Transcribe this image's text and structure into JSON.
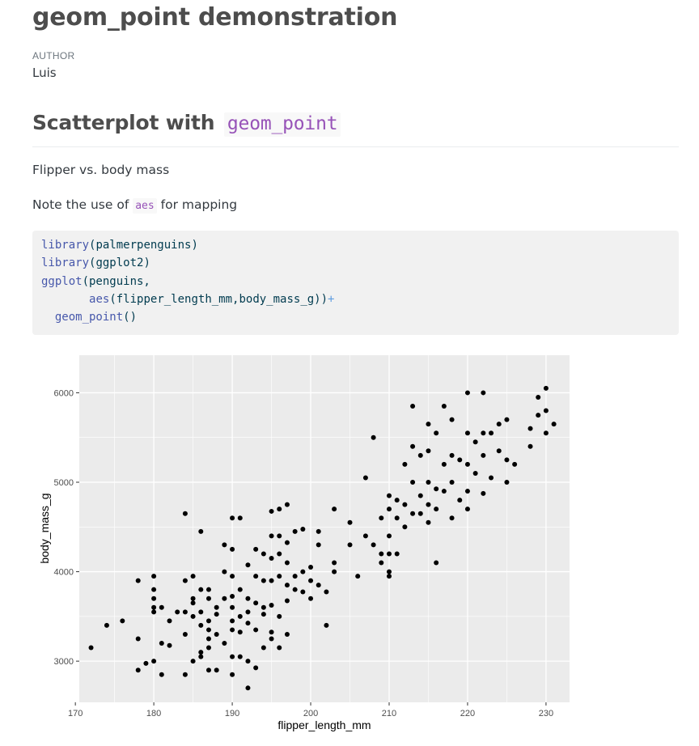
{
  "document": {
    "title": "geom_point demonstration",
    "author_label": "AUTHOR",
    "author_name": "Luis",
    "section_heading": "Scatterplot with",
    "section_heading_code": "geom_point",
    "para1": "Flipper vs. body mass",
    "para2_before": "Note the use of",
    "para2_code": "aes",
    "para2_after": "for mapping"
  },
  "code": {
    "line1_fn": "library",
    "line1_rest": "(palmerpenguins)",
    "line2_fn": "library",
    "line2_rest": "(ggplot2)",
    "line3_fn": "ggplot",
    "line3_rest": "(penguins,",
    "line4_fn": "aes",
    "line4_rest": "(flipper_length_mm,body_mass_g))",
    "line4_plus": "+",
    "line5_fn": "geom_point",
    "line5_rest": "()"
  },
  "colors": {
    "heading": "#4d4d4d",
    "inline_code": "#9753b8",
    "code_function": "#4758ab",
    "code_operator": "#5e9ce0",
    "panel_background": "#ebebeb",
    "grid": "#ffffff",
    "points": "#000000"
  },
  "chart_data": {
    "type": "scatter",
    "xlabel": "flipper_length_mm",
    "ylabel": "body_mass_g",
    "xlim": [
      170.5,
      233
    ],
    "ylim": [
      2540,
      6420
    ],
    "x_ticks": [
      170,
      180,
      190,
      200,
      210,
      220,
      230
    ],
    "y_ticks": [
      3000,
      4000,
      5000,
      6000
    ],
    "grid": true,
    "legend": "none",
    "points": [
      [
        172,
        3150
      ],
      [
        174,
        3400
      ],
      [
        176,
        3450
      ],
      [
        178,
        3900
      ],
      [
        178,
        3250
      ],
      [
        178,
        2900
      ],
      [
        179,
        2975
      ],
      [
        180,
        3950
      ],
      [
        180,
        3800
      ],
      [
        180,
        3700
      ],
      [
        180,
        3600
      ],
      [
        180,
        3550
      ],
      [
        180,
        3000
      ],
      [
        181,
        3600
      ],
      [
        181,
        3200
      ],
      [
        181,
        2850
      ],
      [
        182,
        3175
      ],
      [
        182,
        3450
      ],
      [
        183,
        3550
      ],
      [
        184,
        4650
      ],
      [
        184,
        3900
      ],
      [
        184,
        3550
      ],
      [
        184,
        3300
      ],
      [
        184,
        2850
      ],
      [
        185,
        3950
      ],
      [
        185,
        3700
      ],
      [
        185,
        3650
      ],
      [
        185,
        3500
      ],
      [
        185,
        3000
      ],
      [
        186,
        4450
      ],
      [
        186,
        3800
      ],
      [
        186,
        3550
      ],
      [
        186,
        3400
      ],
      [
        186,
        3100
      ],
      [
        186,
        3050
      ],
      [
        187,
        3800
      ],
      [
        187,
        3700
      ],
      [
        187,
        3450
      ],
      [
        187,
        3350
      ],
      [
        187,
        3250
      ],
      [
        187,
        3150
      ],
      [
        187,
        2900
      ],
      [
        188,
        3600
      ],
      [
        188,
        3525
      ],
      [
        188,
        3300
      ],
      [
        188,
        2900
      ],
      [
        189,
        4300
      ],
      [
        189,
        4000
      ],
      [
        189,
        3700
      ],
      [
        189,
        3200
      ],
      [
        190,
        4600
      ],
      [
        190,
        4250
      ],
      [
        190,
        3950
      ],
      [
        190,
        3725
      ],
      [
        190,
        3600
      ],
      [
        190,
        3450
      ],
      [
        190,
        3350
      ],
      [
        190,
        3050
      ],
      [
        190,
        2850
      ],
      [
        191,
        4600
      ],
      [
        191,
        3800
      ],
      [
        191,
        3500
      ],
      [
        191,
        3325
      ],
      [
        191,
        3050
      ],
      [
        192,
        4075
      ],
      [
        192,
        3700
      ],
      [
        192,
        3550
      ],
      [
        192,
        3425
      ],
      [
        192,
        3000
      ],
      [
        192,
        2700
      ],
      [
        193,
        4250
      ],
      [
        193,
        3950
      ],
      [
        193,
        3650
      ],
      [
        193,
        3350
      ],
      [
        193,
        2925
      ],
      [
        194,
        4200
      ],
      [
        194,
        3900
      ],
      [
        194,
        3600
      ],
      [
        194,
        3525
      ],
      [
        194,
        3150
      ],
      [
        195,
        4675
      ],
      [
        195,
        4400
      ],
      [
        195,
        4150
      ],
      [
        195,
        3900
      ],
      [
        195,
        3625
      ],
      [
        195,
        3325
      ],
      [
        195,
        3250
      ],
      [
        196,
        4700
      ],
      [
        196,
        4400
      ],
      [
        196,
        4200
      ],
      [
        196,
        3950
      ],
      [
        196,
        3500
      ],
      [
        196,
        3150
      ],
      [
        197,
        4750
      ],
      [
        197,
        4325
      ],
      [
        197,
        4100
      ],
      [
        197,
        3850
      ],
      [
        197,
        3675
      ],
      [
        197,
        3300
      ],
      [
        198,
        4450
      ],
      [
        198,
        3950
      ],
      [
        198,
        3800
      ],
      [
        199,
        4475
      ],
      [
        199,
        4000
      ],
      [
        199,
        3775
      ],
      [
        200,
        4050
      ],
      [
        200,
        3900
      ],
      [
        200,
        3700
      ],
      [
        201,
        4450
      ],
      [
        201,
        4300
      ],
      [
        201,
        3850
      ],
      [
        202,
        3775
      ],
      [
        202,
        3400
      ],
      [
        203,
        4700
      ],
      [
        203,
        4100
      ],
      [
        203,
        4000
      ],
      [
        205,
        4550
      ],
      [
        205,
        4300
      ],
      [
        206,
        3950
      ],
      [
        207,
        5050
      ],
      [
        207,
        4400
      ],
      [
        208,
        5500
      ],
      [
        208,
        4300
      ],
      [
        209,
        4600
      ],
      [
        209,
        4200
      ],
      [
        209,
        4100
      ],
      [
        210,
        4850
      ],
      [
        210,
        4700
      ],
      [
        210,
        4400
      ],
      [
        210,
        4200
      ],
      [
        210,
        4000
      ],
      [
        210,
        3950
      ],
      [
        211,
        4800
      ],
      [
        211,
        4600
      ],
      [
        211,
        4200
      ],
      [
        212,
        5200
      ],
      [
        212,
        4750
      ],
      [
        212,
        4500
      ],
      [
        213,
        5850
      ],
      [
        213,
        5400
      ],
      [
        213,
        5000
      ],
      [
        213,
        4650
      ],
      [
        214,
        5300
      ],
      [
        214,
        4850
      ],
      [
        214,
        4650
      ],
      [
        215,
        5650
      ],
      [
        215,
        5350
      ],
      [
        215,
        5000
      ],
      [
        215,
        4750
      ],
      [
        215,
        4550
      ],
      [
        216,
        5550
      ],
      [
        216,
        4925
      ],
      [
        216,
        4700
      ],
      [
        216,
        4100
      ],
      [
        217,
        5850
      ],
      [
        217,
        5200
      ],
      [
        217,
        4900
      ],
      [
        218,
        5700
      ],
      [
        218,
        5300
      ],
      [
        218,
        5000
      ],
      [
        218,
        4600
      ],
      [
        219,
        5250
      ],
      [
        219,
        4800
      ],
      [
        220,
        6000
      ],
      [
        220,
        5550
      ],
      [
        220,
        5200
      ],
      [
        220,
        4900
      ],
      [
        220,
        4700
      ],
      [
        221,
        5450
      ],
      [
        221,
        5100
      ],
      [
        222,
        6000
      ],
      [
        222,
        5550
      ],
      [
        222,
        5300
      ],
      [
        222,
        4875
      ],
      [
        223,
        5550
      ],
      [
        223,
        5050
      ],
      [
        224,
        5650
      ],
      [
        224,
        5350
      ],
      [
        225,
        5700
      ],
      [
        225,
        5250
      ],
      [
        225,
        5000
      ],
      [
        226,
        5200
      ],
      [
        228,
        5600
      ],
      [
        228,
        5400
      ],
      [
        229,
        5950
      ],
      [
        229,
        5750
      ],
      [
        230,
        6050
      ],
      [
        230,
        5800
      ],
      [
        230,
        5550
      ],
      [
        231,
        5650
      ]
    ]
  }
}
